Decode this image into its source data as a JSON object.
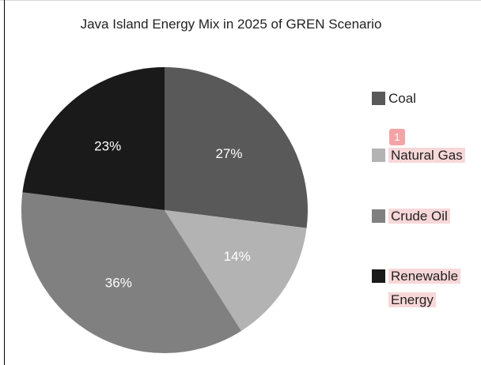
{
  "chart_data": {
    "type": "pie",
    "title": "Java Island Energy Mix in 2025 of GREN Scenario",
    "slices": [
      {
        "label": "Coal",
        "value": 27,
        "display": "27%",
        "color": "#595959"
      },
      {
        "label": "Natural Gas",
        "value": 14,
        "display": "14%",
        "color": "#b3b3b3"
      },
      {
        "label": "Crude Oil",
        "value": 36,
        "display": "36%",
        "color": "#808080"
      },
      {
        "label": "Renewable Energy",
        "value": 23,
        "display": "23%",
        "color": "#1a1a1a"
      }
    ],
    "legend": {
      "placement": "right",
      "items": [
        {
          "label": "Coal",
          "color": "#595959",
          "highlighted": false
        },
        {
          "label": "Natural Gas",
          "color": "#b3b3b3",
          "highlighted": true
        },
        {
          "label": "Crude Oil",
          "color": "#808080",
          "highlighted": true
        },
        {
          "label": "Renewable Energy",
          "line1": "Renewable",
          "line2": "Energy",
          "color": "#1a1a1a",
          "highlighted": true
        }
      ]
    },
    "annotation_badge": "1"
  }
}
